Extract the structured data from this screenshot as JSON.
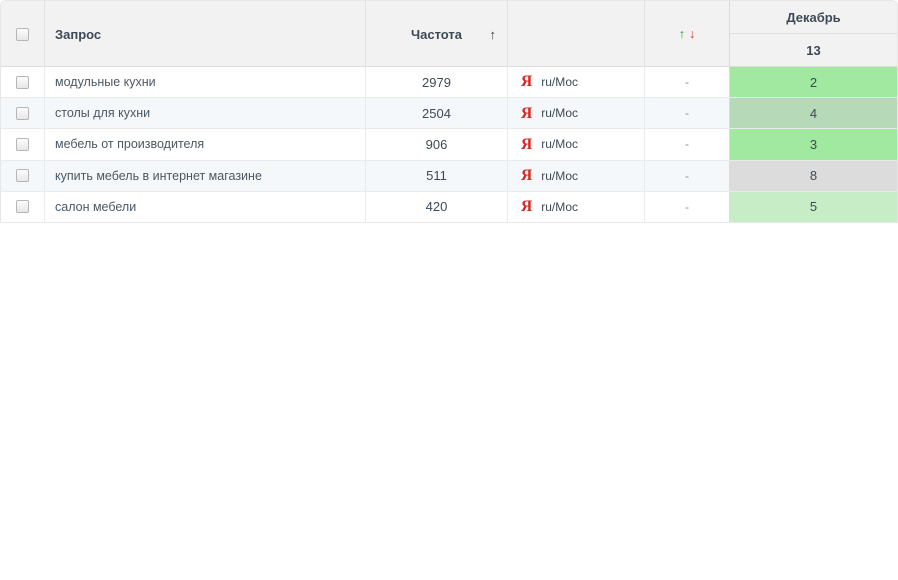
{
  "table": {
    "header": {
      "query_label": "Запрос",
      "frequency_label": "Частота",
      "frequency_sort_icon": "↑",
      "dynamics_up_icon": "↑",
      "dynamics_down_icon": "↓",
      "month_label": "Декабрь",
      "day_label": "13"
    },
    "colors": {
      "dynamics_up": "#2e9a32",
      "dynamics_down": "#cc2a23",
      "yandex_red": "#d9221e",
      "position_good": "#a1e8a1",
      "position_good_alt": "#b6d9b8",
      "position_mid": "#c7edc7",
      "position_gray": "#dcdcdc"
    },
    "rows": [
      {
        "query": "модульные кухни",
        "frequency": "2979",
        "engine_icon": "Я",
        "engine_label": "ru/Мос",
        "dynamics": "-",
        "position": "2",
        "position_bg": "#a1e8a1"
      },
      {
        "query": "столы для кухни",
        "frequency": "2504",
        "engine_icon": "Я",
        "engine_label": "ru/Мос",
        "dynamics": "-",
        "position": "4",
        "position_bg": "#b6d9b8"
      },
      {
        "query": "мебель от производителя",
        "frequency": "906",
        "engine_icon": "Я",
        "engine_label": "ru/Мос",
        "dynamics": "-",
        "position": "3",
        "position_bg": "#a1e8a1"
      },
      {
        "query": "купить мебель в интернет магазине",
        "frequency": "511",
        "engine_icon": "Я",
        "engine_label": "ru/Мос",
        "dynamics": "-",
        "position": "8",
        "position_bg": "#dcdcdc"
      },
      {
        "query": "салон мебели",
        "frequency": "420",
        "engine_icon": "Я",
        "engine_label": "ru/Мос",
        "dynamics": "-",
        "position": "5",
        "position_bg": "#c7edc7"
      }
    ]
  }
}
